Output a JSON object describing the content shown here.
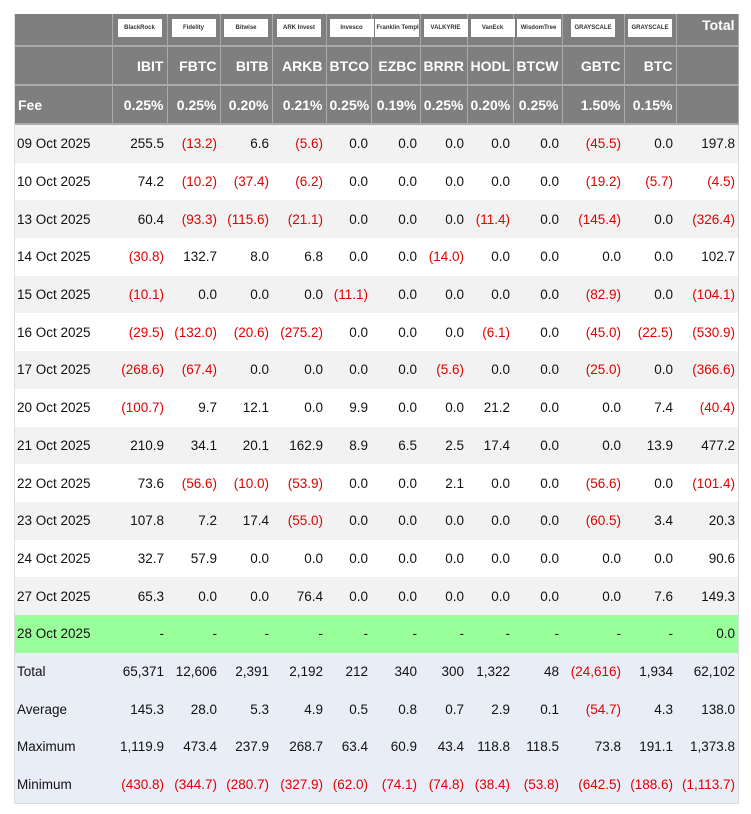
{
  "brands": [
    "BlackRock",
    "Fidelity",
    "Bitwise",
    "ARK Invest",
    "Invesco",
    "Franklin Templeton",
    "VALKYRIE",
    "VanEck",
    "WisdomTree",
    "GRAYSCALE",
    "GRAYSCALE"
  ],
  "total_label": "Total",
  "tickers": [
    "IBIT",
    "FBTC",
    "BITB",
    "ARKB",
    "BTCO",
    "EZBC",
    "BRRR",
    "HODL",
    "BTCW",
    "GBTC",
    "BTC"
  ],
  "fee_label": "Fee",
  "fees": [
    "0.25%",
    "0.25%",
    "0.20%",
    "0.21%",
    "0.25%",
    "0.19%",
    "0.25%",
    "0.20%",
    "0.25%",
    "1.50%",
    "0.15%"
  ],
  "colors": {
    "header_bg": "#7f7f7f",
    "negative": "#e00000",
    "highlight": "#99ff99",
    "summary_bg": "#e9edf8"
  },
  "rows": [
    {
      "date": "09 Oct 2025",
      "values": [
        "255.5",
        "(13.2)",
        "6.6",
        "(5.6)",
        "0.0",
        "0.0",
        "0.0",
        "0.0",
        "0.0",
        "(45.5)",
        "0.0",
        "197.8"
      ]
    },
    {
      "date": "10 Oct 2025",
      "values": [
        "74.2",
        "(10.2)",
        "(37.4)",
        "(6.2)",
        "0.0",
        "0.0",
        "0.0",
        "0.0",
        "0.0",
        "(19.2)",
        "(5.7)",
        "(4.5)"
      ]
    },
    {
      "date": "13 Oct 2025",
      "values": [
        "60.4",
        "(93.3)",
        "(115.6)",
        "(21.1)",
        "0.0",
        "0.0",
        "0.0",
        "(11.4)",
        "0.0",
        "(145.4)",
        "0.0",
        "(326.4)"
      ]
    },
    {
      "date": "14 Oct 2025",
      "values": [
        "(30.8)",
        "132.7",
        "8.0",
        "6.8",
        "0.0",
        "0.0",
        "(14.0)",
        "0.0",
        "0.0",
        "0.0",
        "0.0",
        "102.7"
      ]
    },
    {
      "date": "15 Oct 2025",
      "values": [
        "(10.1)",
        "0.0",
        "0.0",
        "0.0",
        "(11.1)",
        "0.0",
        "0.0",
        "0.0",
        "0.0",
        "(82.9)",
        "0.0",
        "(104.1)"
      ]
    },
    {
      "date": "16 Oct 2025",
      "values": [
        "(29.5)",
        "(132.0)",
        "(20.6)",
        "(275.2)",
        "0.0",
        "0.0",
        "0.0",
        "(6.1)",
        "0.0",
        "(45.0)",
        "(22.5)",
        "(530.9)"
      ]
    },
    {
      "date": "17 Oct 2025",
      "values": [
        "(268.6)",
        "(67.4)",
        "0.0",
        "0.0",
        "0.0",
        "0.0",
        "(5.6)",
        "0.0",
        "0.0",
        "(25.0)",
        "0.0",
        "(366.6)"
      ]
    },
    {
      "date": "20 Oct 2025",
      "values": [
        "(100.7)",
        "9.7",
        "12.1",
        "0.0",
        "9.9",
        "0.0",
        "0.0",
        "21.2",
        "0.0",
        "0.0",
        "7.4",
        "(40.4)"
      ]
    },
    {
      "date": "21 Oct 2025",
      "values": [
        "210.9",
        "34.1",
        "20.1",
        "162.9",
        "8.9",
        "6.5",
        "2.5",
        "17.4",
        "0.0",
        "0.0",
        "13.9",
        "477.2"
      ]
    },
    {
      "date": "22 Oct 2025",
      "values": [
        "73.6",
        "(56.6)",
        "(10.0)",
        "(53.9)",
        "0.0",
        "0.0",
        "2.1",
        "0.0",
        "0.0",
        "(56.6)",
        "0.0",
        "(101.4)"
      ]
    },
    {
      "date": "23 Oct 2025",
      "values": [
        "107.8",
        "7.2",
        "17.4",
        "(55.0)",
        "0.0",
        "0.0",
        "0.0",
        "0.0",
        "0.0",
        "(60.5)",
        "3.4",
        "20.3"
      ]
    },
    {
      "date": "24 Oct 2025",
      "values": [
        "32.7",
        "57.9",
        "0.0",
        "0.0",
        "0.0",
        "0.0",
        "0.0",
        "0.0",
        "0.0",
        "0.0",
        "0.0",
        "90.6"
      ]
    },
    {
      "date": "27 Oct 2025",
      "values": [
        "65.3",
        "0.0",
        "0.0",
        "76.4",
        "0.0",
        "0.0",
        "0.0",
        "0.0",
        "0.0",
        "0.0",
        "7.6",
        "149.3"
      ]
    },
    {
      "date": "28 Oct 2025",
      "highlight": true,
      "values": [
        "-",
        "-",
        "-",
        "-",
        "-",
        "-",
        "-",
        "-",
        "-",
        "-",
        "-",
        "0.0"
      ]
    }
  ],
  "summary": [
    {
      "label": "Total",
      "values": [
        "65,371",
        "12,606",
        "2,391",
        "2,192",
        "212",
        "340",
        "300",
        "1,322",
        "48",
        "(24,616)",
        "1,934",
        "62,102"
      ]
    },
    {
      "label": "Average",
      "values": [
        "145.3",
        "28.0",
        "5.3",
        "4.9",
        "0.5",
        "0.8",
        "0.7",
        "2.9",
        "0.1",
        "(54.7)",
        "4.3",
        "138.0"
      ]
    },
    {
      "label": "Maximum",
      "values": [
        "1,119.9",
        "473.4",
        "237.9",
        "268.7",
        "63.4",
        "60.9",
        "43.4",
        "118.8",
        "118.5",
        "73.8",
        "191.1",
        "1,373.8"
      ]
    },
    {
      "label": "Minimum",
      "values": [
        "(430.8)",
        "(344.7)",
        "(280.7)",
        "(327.9)",
        "(62.0)",
        "(74.1)",
        "(74.8)",
        "(38.4)",
        "(53.8)",
        "(642.5)",
        "(188.6)",
        "(1,113.7)"
      ]
    }
  ]
}
